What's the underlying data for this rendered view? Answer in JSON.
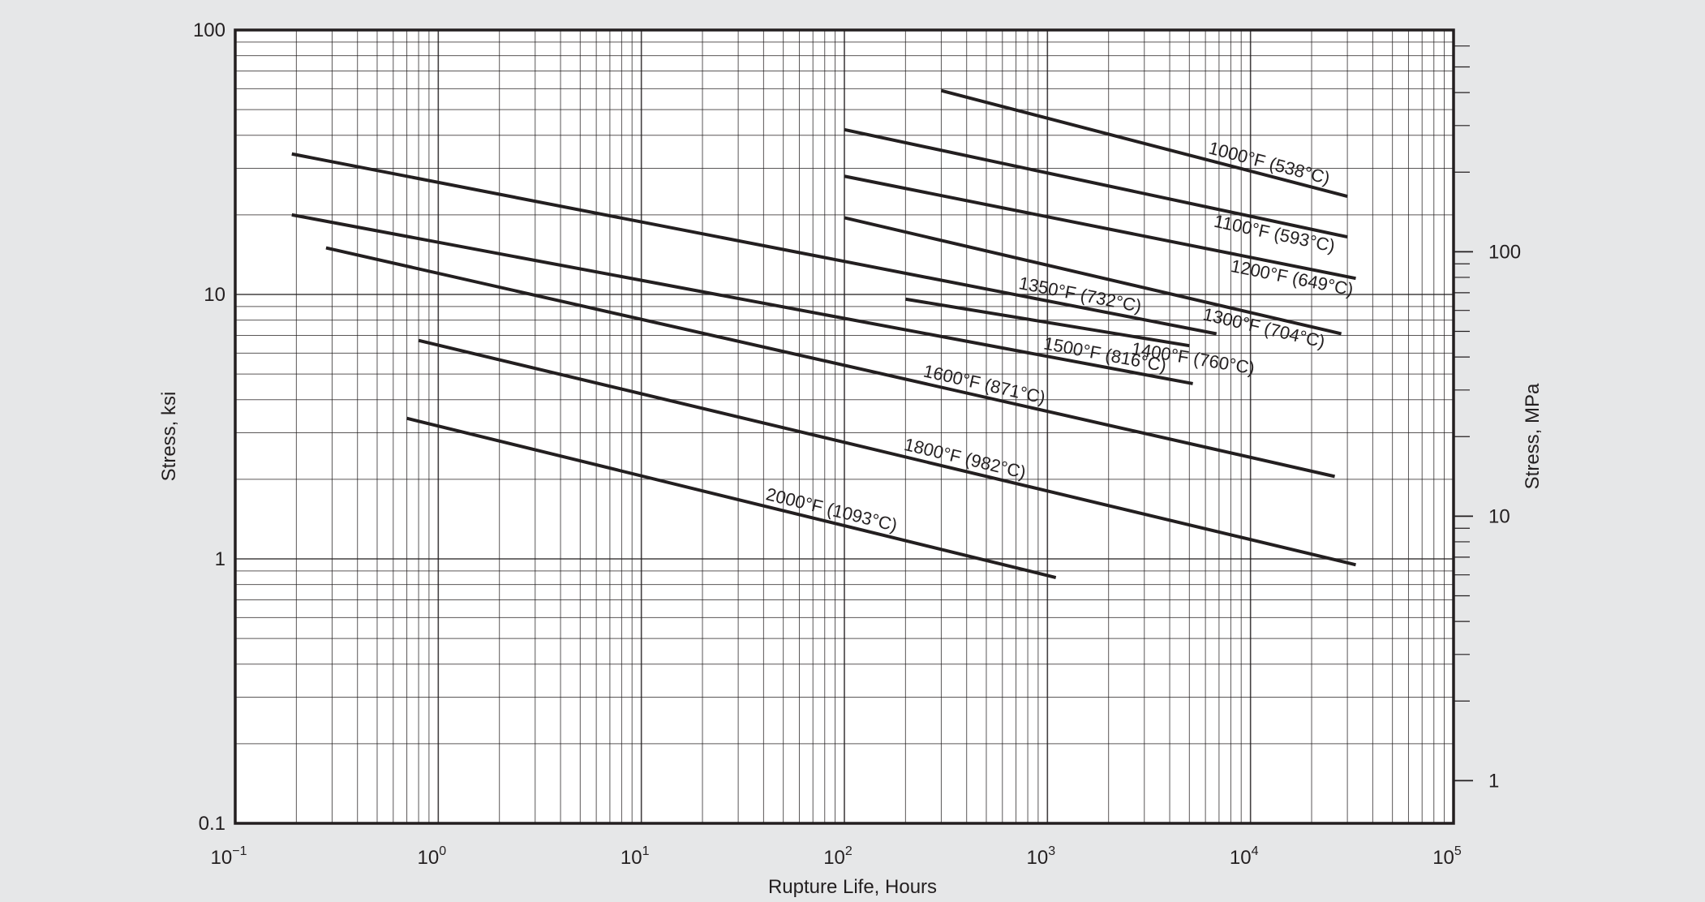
{
  "chart_data": {
    "type": "line",
    "xscale": "log",
    "yscale": "log",
    "xlim": [
      0.1,
      100000
    ],
    "ylim": [
      0.1,
      100
    ],
    "y2lim_mpa": [
      0.6895,
      689.5
    ],
    "grid": true,
    "background": "#e6e7e8",
    "plot_background": "#ffffff",
    "line_color": "#231f20",
    "xlabel": "Rupture Life, Hours",
    "ylabel": "Stress, ksi",
    "y2label": "Stress, MPa",
    "x_ticks": [
      {
        "base": "10",
        "exp": "−1"
      },
      {
        "base": "10",
        "exp": "0"
      },
      {
        "base": "10",
        "exp": "1"
      },
      {
        "base": "10",
        "exp": "2"
      },
      {
        "base": "10",
        "exp": "3"
      },
      {
        "base": "10",
        "exp": "4"
      },
      {
        "base": "10",
        "exp": "5"
      }
    ],
    "y_ticks": [
      "0.1",
      "1",
      "10",
      "100"
    ],
    "y2_ticks": [
      "1",
      "10",
      "100"
    ],
    "series": [
      {
        "name": "1000°F (538°C)",
        "x": [
          300,
          30000
        ],
        "y": [
          59,
          23.5
        ]
      },
      {
        "name": "1100°F (593°C)",
        "x": [
          100,
          30000
        ],
        "y": [
          42,
          16.5
        ]
      },
      {
        "name": "1200°F (649°C)",
        "x": [
          100,
          33000
        ],
        "y": [
          28,
          11.5
        ]
      },
      {
        "name": "1300°F (704°C)",
        "x": [
          100,
          28000
        ],
        "y": [
          19.5,
          7.1
        ]
      },
      {
        "name": "1350°F (732°C)",
        "x": [
          0.19,
          6800
        ],
        "y": [
          34,
          7.1
        ]
      },
      {
        "name": "1400°F (760°C)",
        "x": [
          200,
          5000
        ],
        "y": [
          9.6,
          6.4
        ]
      },
      {
        "name": "1500°F (816°C)",
        "x": [
          0.19,
          5200
        ],
        "y": [
          20,
          4.6
        ]
      },
      {
        "name": "1600°F (871°C)",
        "x": [
          0.28,
          26000
        ],
        "y": [
          15,
          2.05
        ]
      },
      {
        "name": "1800°F (982°C)",
        "x": [
          0.8,
          33000
        ],
        "y": [
          6.7,
          0.95
        ]
      },
      {
        "name": "2000°F (1093°C)",
        "x": [
          0.7,
          1100
        ],
        "y": [
          3.4,
          0.85
        ]
      }
    ]
  }
}
